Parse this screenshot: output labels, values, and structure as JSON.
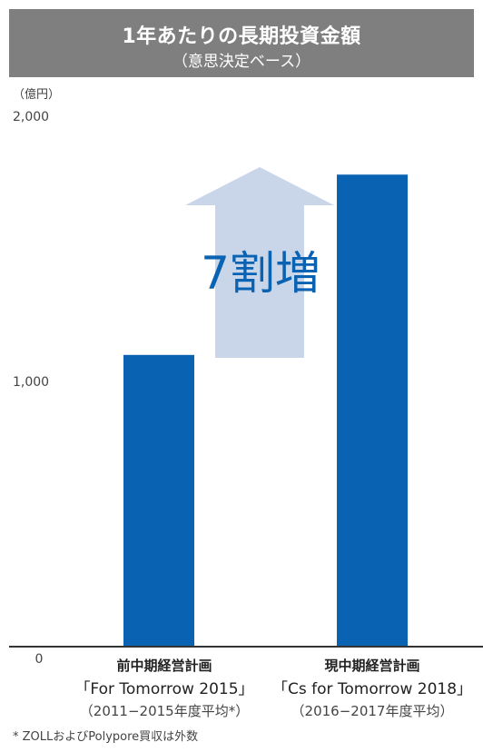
{
  "header": {
    "title": "1年あたりの長期投資金額",
    "subtitle": "（意思決定ベース）"
  },
  "axis_unit": "（億円）",
  "footnote": "* ZOLLおよびPolypore買収は外数",
  "colors": {
    "header_bg": "#7f7f7f",
    "bar": "#0a62b3",
    "arrow": "#c9d6ea",
    "annotation": "#0a62b3"
  },
  "chart_data": {
    "type": "bar",
    "title": "1年あたりの長期投資金額",
    "subtitle": "（意思決定ベース）",
    "ylabel": "（億円）",
    "ylim": [
      0,
      2000
    ],
    "y_ticks": [
      {
        "value": 0,
        "label": "0"
      },
      {
        "value": 1000,
        "label": "1,000"
      },
      {
        "value": 2000,
        "label": "2,000"
      }
    ],
    "categories": [
      {
        "name": "前中期経営計画",
        "plan": "「For Tomorrow 2015」",
        "period": "（2011−2015年度平均*）"
      },
      {
        "name": "現中期経営計画",
        "plan": "「Cs for Tomorrow 2018」",
        "period": "（2016−2017年度平均）"
      }
    ],
    "values": [
      1100,
      1780
    ],
    "annotation": "7割増",
    "grid": false,
    "legend": "none"
  }
}
